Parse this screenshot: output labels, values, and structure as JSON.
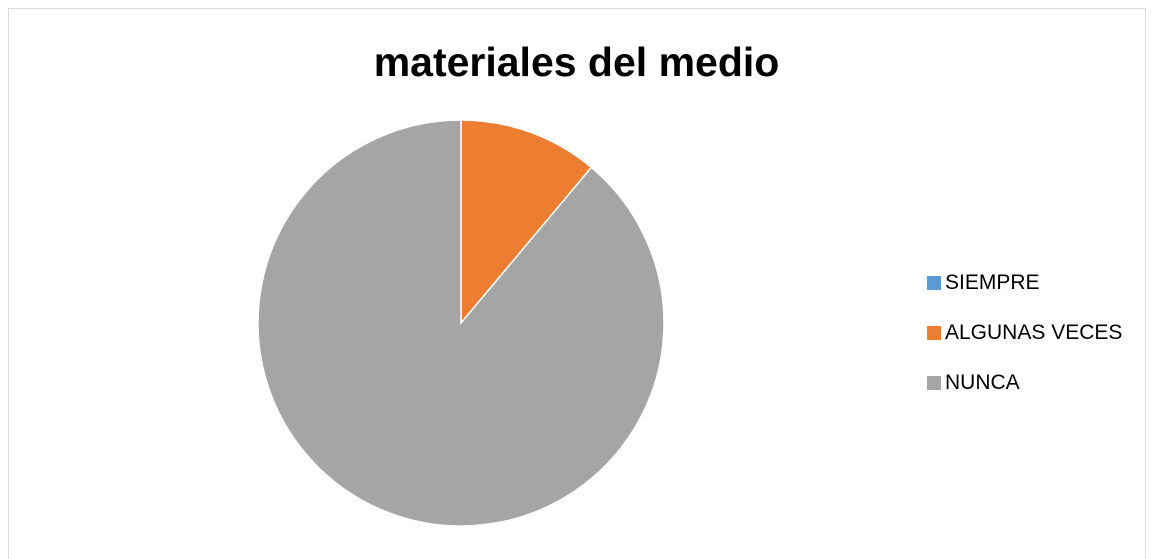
{
  "chart_data": {
    "type": "pie",
    "title": "materiales del medio",
    "categories": [
      "SIEMPRE",
      "ALGUNAS VECES",
      "NUNCA"
    ],
    "values": [
      0,
      11.1,
      88.9
    ],
    "colors": [
      "#5b9bd5",
      "#ed7d31",
      "#a5a5a5"
    ],
    "legend_position": "right",
    "start_angle_deg": 0,
    "direction": "clockwise"
  }
}
